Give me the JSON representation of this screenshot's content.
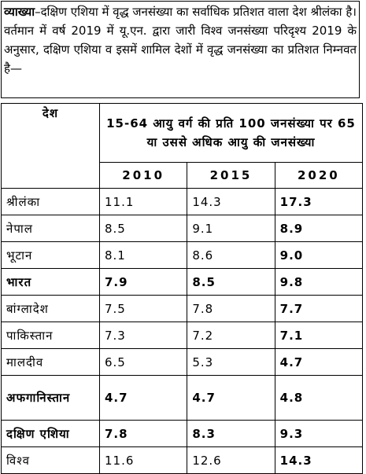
{
  "explanation": {
    "label": "व्याख्या",
    "text": "–दक्षिण एशिया में वृद्ध जनसंख्या का सर्वाधिक प्रतिशत वाला देश श्रीलंका है।",
    "paragraph": "वर्तमान में वर्ष 2019 में यू.एन. द्वारा जारी विश्व जनसंख्या परिदृश्य 2019 के अनुसार, दक्षिण एशिया व इसमें शामिल देशों में वृद्ध जनसंख्या का प्रतिशत निम्नवत है—"
  },
  "table": {
    "header": {
      "country": "देश",
      "measure": "15-64 आयु वर्ग की प्रति 100 जनसंख्या पर 65 या उससे अधिक आयु की जनसंख्या",
      "years": [
        "2010",
        "2015",
        "2020"
      ]
    },
    "rows": [
      [
        "श्रीलंका",
        "11.1",
        "14.3",
        "17.3"
      ],
      [
        "नेपाल",
        "8.5",
        "9.1",
        "8.9"
      ],
      [
        "भूटान",
        "8.1",
        "8.6",
        "9.0"
      ],
      [
        "भारत",
        "7.9",
        "8.5",
        "9.8"
      ],
      [
        "बांग्लादेश",
        "7.5",
        "7.8",
        "7.7"
      ],
      [
        "पाकिस्तान",
        "7.3",
        "7.2",
        "7.1"
      ],
      [
        "मालदीव",
        "6.5",
        "5.3",
        "4.7"
      ],
      [
        "अफगानिस्तान",
        "4.7",
        "4.7",
        "4.8"
      ],
      [
        "दक्षिण एशिया",
        "7.8",
        "8.3",
        "9.3"
      ],
      [
        "विश्व",
        "11.6",
        "12.6",
        "14.3"
      ]
    ]
  }
}
